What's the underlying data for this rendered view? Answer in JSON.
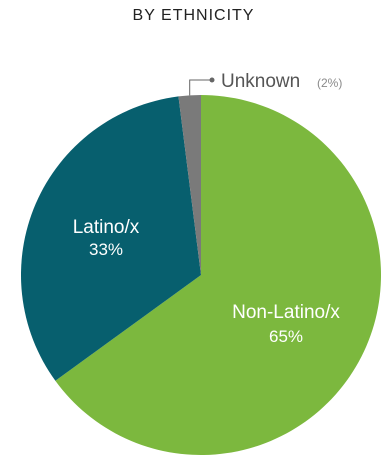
{
  "chart_data": {
    "type": "pie",
    "title": "BY ETHNICITY",
    "slices": [
      {
        "label": "Non-Latino/x",
        "value": 65,
        "value_label": "65%",
        "color": "#7cb83e",
        "text_color": "#ffffff"
      },
      {
        "label": "Latino/x",
        "value": 33,
        "value_label": "33%",
        "color": "#075f6e",
        "text_color": "#ffffff"
      },
      {
        "label": "Unknown",
        "value": 2,
        "value_label": "(2%)",
        "color": "#7a7a7a",
        "text_color": "#555555"
      }
    ],
    "start_angle": "12 o'clock",
    "direction": "clockwise",
    "label_placement": {
      "Non-Latino/x": "inside",
      "Latino/x": "inside",
      "Unknown": "callout"
    }
  }
}
